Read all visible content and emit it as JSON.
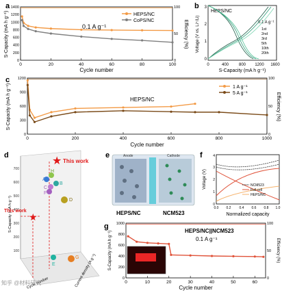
{
  "panels": {
    "a": {
      "label": "a",
      "ylabel": "S-Capacity (mA h g⁻¹)",
      "y2label": "Efficiency (%)",
      "xlabel": "Cycle number",
      "rate": "0.1 A g⁻¹",
      "yticks": [
        "0",
        "200",
        "400",
        "600",
        "800",
        "1000",
        "1200",
        "1400"
      ],
      "y2ticks": [
        "0",
        "50",
        "100"
      ],
      "xticks": [
        "0",
        "20",
        "40",
        "60",
        "80",
        "100"
      ],
      "legend": [
        "HEPS/NC",
        "CoPS/NC"
      ]
    },
    "b": {
      "label": "b",
      "title": "HEPS/NC",
      "ylabel": "Voltage (V vs. Li⁺/Li)",
      "xlabel": "S-Capacity (mA h g⁻¹)",
      "rate": "0.1 A g⁻¹",
      "xticks": [
        "0",
        "400",
        "800",
        "1200",
        "1600"
      ],
      "yticks": [
        "0",
        "1",
        "2",
        "3"
      ],
      "legend": [
        "1st",
        "2nd",
        "3rd",
        "5th",
        "10th",
        "20th"
      ]
    },
    "c": {
      "label": "c",
      "title": "HEPS/NC",
      "ylabel": "S-Capacity (mA h g⁻¹)",
      "y2label": "Efficiency (%)",
      "xlabel": "Cycle number",
      "yticks": [
        "0",
        "300",
        "600",
        "900",
        "1200"
      ],
      "xticks": [
        "0",
        "200",
        "400",
        "600",
        "800",
        "1000"
      ],
      "y2ticks": [
        "0",
        "50",
        "100"
      ],
      "legend": [
        "1 A g⁻¹",
        "5 A g⁻¹"
      ]
    },
    "d": {
      "label": "d",
      "zlabel": "S-Capacity (mA h g⁻¹)",
      "xlabel": "Cycle number",
      "ylabel": "Current density (A g⁻¹)",
      "this_work_top": "This work",
      "this_work_left": "This work",
      "zticks": [
        "100",
        "200",
        "300",
        "400",
        "500",
        "600",
        "700"
      ],
      "points": [
        "A",
        "B",
        "C",
        "D",
        "E",
        "F",
        "G",
        "H"
      ]
    },
    "e": {
      "label": "e",
      "anode": "Anode",
      "cathode": "Cathode",
      "left_caption": "HEPS/NC",
      "right_caption": "NCM523"
    },
    "f": {
      "label": "f",
      "ylabel": "Voltage (V)",
      "xlabel": "Normalized capacity",
      "yticks": [
        "0",
        "1",
        "2",
        "3",
        "4"
      ],
      "xticks": [
        "0.0",
        "0.2",
        "0.4",
        "0.6",
        "0.8",
        "1.0"
      ],
      "legend": [
        "NCM523",
        "Full cell",
        "HEPS/NC"
      ]
    },
    "g": {
      "label": "g",
      "title": "HEPS/NC||NCM523",
      "rate": "0.1 A g⁻¹",
      "ylabel": "S-Capacity (mA h g⁻¹)",
      "y2label": "Efficiency (%)",
      "xlabel": "Cycle number",
      "yticks": [
        "0",
        "200",
        "400",
        "600",
        "800",
        "1000"
      ],
      "xticks": [
        "0",
        "10",
        "20",
        "30",
        "40",
        "50",
        "60"
      ],
      "y2ticks": [
        "0",
        "50",
        "100"
      ]
    }
  },
  "watermark": "知乎 @材料研究",
  "colors": {
    "orange": "#f39a45",
    "gray": "#7f7f7f",
    "brown": "#7a4a18",
    "red": "#e0533a",
    "green": "#2e9e7a",
    "star": "#e01818"
  },
  "chart_data": [
    {
      "type": "line",
      "panel": "a",
      "x": [
        1,
        2,
        5,
        10,
        20,
        40,
        60,
        80,
        100
      ],
      "series": [
        {
          "name": "HEPS/NC",
          "values": [
            1150,
            980,
            900,
            860,
            830,
            800,
            790,
            785,
            780
          ]
        },
        {
          "name": "CoPS/NC",
          "values": [
            1050,
            900,
            820,
            760,
            700,
            620,
            560,
            520,
            470
          ]
        }
      ],
      "xlim": [
        0,
        100
      ],
      "ylim": [
        0,
        1400
      ],
      "y2lim": [
        0,
        100
      ]
    },
    {
      "type": "line",
      "panel": "c",
      "x": [
        1,
        10,
        30,
        100,
        200,
        400,
        600,
        700,
        800,
        1000
      ],
      "series": [
        {
          "name": "1 A g⁻¹",
          "values": [
            1150,
            520,
            350,
            470,
            550,
            570,
            590,
            650,
            null,
            null
          ]
        },
        {
          "name": "5 A g⁻¹",
          "values": [
            1050,
            400,
            260,
            380,
            470,
            500,
            480,
            470,
            470,
            410
          ]
        }
      ],
      "xlim": [
        0,
        1000
      ],
      "ylim": [
        0,
        1200
      ],
      "y2lim": [
        0,
        100
      ]
    },
    {
      "type": "line",
      "panel": "g",
      "x": [
        1,
        5,
        10,
        15,
        20,
        21,
        30,
        40,
        50,
        60,
        64
      ],
      "series": [
        {
          "name": "HEPS/NC||NCM523",
          "values": [
            760,
            660,
            640,
            630,
            620,
            420,
            410,
            400,
            395,
            390,
            385
          ]
        }
      ],
      "xlim": [
        0,
        65
      ],
      "ylim": [
        0,
        1000
      ],
      "y2lim": [
        0,
        100
      ]
    }
  ]
}
